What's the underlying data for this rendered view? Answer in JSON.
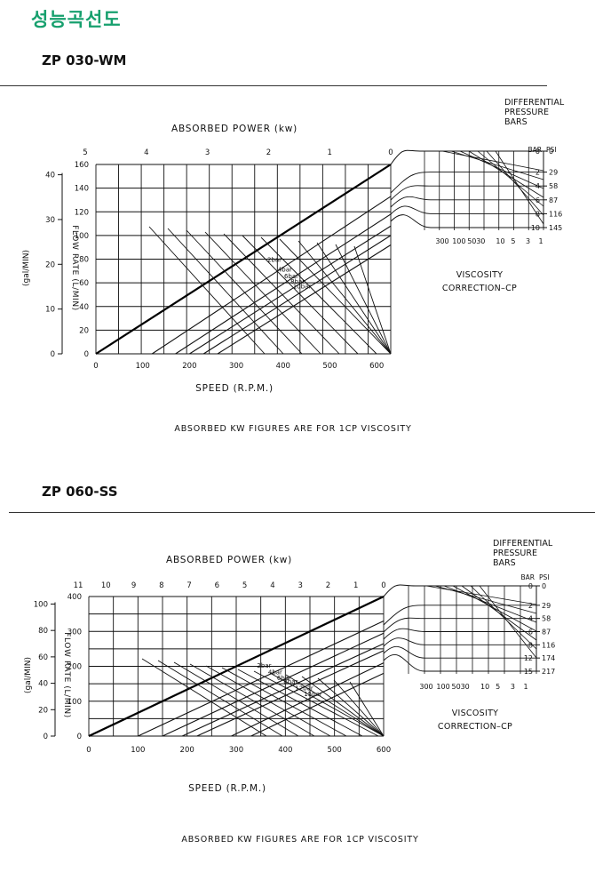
{
  "page_title": "성능곡선도",
  "chart_data": [
    {
      "type": "line",
      "model": "ZP 030-WM",
      "title": "ABSORBED POWER (kw)",
      "power_ticks": [
        "5",
        "4",
        "3",
        "2",
        "1",
        "0"
      ],
      "xlabel": "SPEED (R.P.M.)",
      "x_ticks": [
        0,
        100,
        200,
        300,
        400,
        500,
        600
      ],
      "xlim": [
        0,
        630
      ],
      "ylabel": "FLOW RATE (L/MIN)",
      "y_ticks": [
        0,
        20,
        40,
        60,
        80,
        100,
        120,
        140,
        160
      ],
      "ylim": [
        0,
        160
      ],
      "gpm_label": "(gal/MIN)",
      "gpm_ticks": [
        0,
        10,
        20,
        30,
        40
      ],
      "gpm_max": 42.3,
      "theoretical_line": {
        "x": [
          0,
          630
        ],
        "y": [
          0,
          160
        ]
      },
      "series": [
        {
          "name": "2bar",
          "x": [
            120,
            630
          ],
          "y": [
            0,
            133
          ]
        },
        {
          "name": "4bar",
          "x": [
            170,
            630
          ],
          "y": [
            0,
            118
          ]
        },
        {
          "name": "6bar",
          "x": [
            200,
            630
          ],
          "y": [
            0,
            108
          ]
        },
        {
          "name": "8bar",
          "x": [
            230,
            630
          ],
          "y": [
            0,
            100
          ]
        },
        {
          "name": "10bar",
          "x": [
            260,
            630
          ],
          "y": [
            0,
            92
          ]
        }
      ],
      "pressure_title": [
        "DIFFERENTIAL",
        "PRESSURE",
        "BARS"
      ],
      "bar_header": "BAR",
      "psi_header": "PSI",
      "pressure_scale": [
        {
          "bar": "0",
          "psi": "0"
        },
        {
          "bar": "2",
          "psi": "29"
        },
        {
          "bar": "4",
          "psi": "58"
        },
        {
          "bar": "6",
          "psi": "87"
        },
        {
          "bar": "8",
          "psi": "116"
        },
        {
          "bar": "10",
          "psi": "145"
        }
      ],
      "viscosity_ticks": [
        "300",
        "100",
        "50",
        "30",
        "10",
        "5",
        "3",
        "1"
      ],
      "viscosity_label": [
        "VISCOSITY",
        "CORRECTION–CP"
      ],
      "footnote": "ABSORBED KW FIGURES ARE FOR 1CP VISCOSITY"
    },
    {
      "type": "line",
      "model": "ZP 060-SS",
      "title": "ABSORBED POWER (kw)",
      "power_ticks": [
        "11",
        "10",
        "9",
        "8",
        "7",
        "6",
        "5",
        "4",
        "3",
        "2",
        "1",
        "0"
      ],
      "xlabel": "SPEED (R.P.M.)",
      "x_ticks": [
        0,
        100,
        200,
        300,
        400,
        500,
        600
      ],
      "xlim": [
        0,
        600
      ],
      "ylabel": "FLOW RATE (L/MIN)",
      "y_ticks": [
        0,
        100,
        200,
        300,
        400
      ],
      "ylim": [
        0,
        400
      ],
      "gpm_label": "(gal/MIN)",
      "gpm_ticks": [
        0,
        20,
        40,
        60,
        80,
        100
      ],
      "gpm_max": 105.7,
      "theoretical_line": {
        "x": [
          0,
          600
        ],
        "y": [
          0,
          400
        ]
      },
      "series": [
        {
          "name": "2bar",
          "x": [
            100,
            600
          ],
          "y": [
            0,
            330
          ]
        },
        {
          "name": "4bar",
          "x": [
            150,
            600
          ],
          "y": [
            0,
            295
          ]
        },
        {
          "name": "6bar",
          "x": [
            190,
            600
          ],
          "y": [
            0,
            265
          ]
        },
        {
          "name": "8bar",
          "x": [
            220,
            600
          ],
          "y": [
            0,
            245
          ]
        },
        {
          "name": "12bar",
          "x": [
            290,
            600
          ],
          "y": [
            0,
            210
          ]
        },
        {
          "name": "15bar",
          "x": [
            330,
            600
          ],
          "y": [
            0,
            180
          ]
        }
      ],
      "pressure_title": [
        "DIFFERENTIAL",
        "PRESSURE",
        "BARS"
      ],
      "bar_header": "BAR",
      "psi_header": "PSI",
      "pressure_scale": [
        {
          "bar": "0",
          "psi": "0"
        },
        {
          "bar": "2",
          "psi": "29"
        },
        {
          "bar": "4",
          "psi": "58"
        },
        {
          "bar": "6",
          "psi": "87"
        },
        {
          "bar": "8",
          "psi": "116"
        },
        {
          "bar": "12",
          "psi": "174"
        },
        {
          "bar": "15",
          "psi": "217"
        }
      ],
      "viscosity_ticks": [
        "300",
        "100",
        "50",
        "30",
        "10",
        "5",
        "3",
        "1"
      ],
      "viscosity_label": [
        "VISCOSITY",
        "CORRECTION–CP"
      ],
      "footnote": "ABSORBED KW FIGURES ARE FOR 1CP VISCOSITY"
    }
  ]
}
